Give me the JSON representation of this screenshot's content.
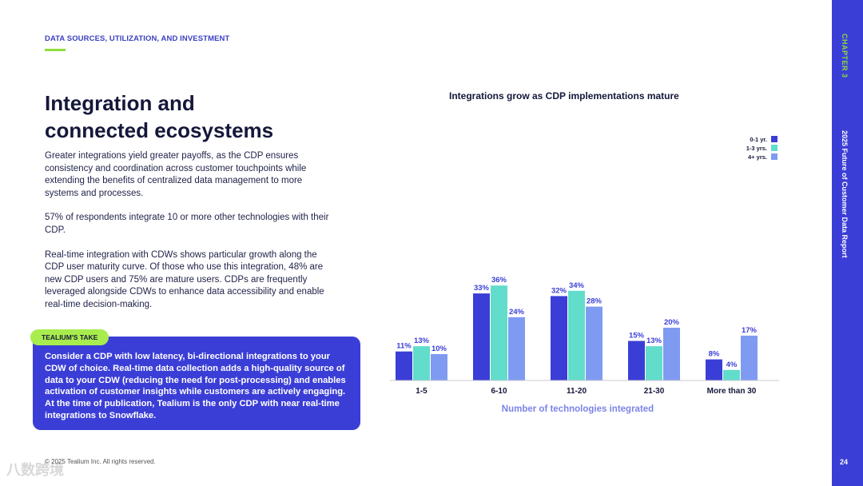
{
  "header": {
    "eyebrow": "DATA SOURCES, UTILIZATION, AND INVESTMENT"
  },
  "title_line1": "Integration and",
  "title_line2": "connected ecosystems",
  "paragraphs": [
    "Greater integrations yield greater payoffs, as the CDP ensures consistency and coordination across customer touchpoints while extending the benefits of centralized data management to more systems and processes.",
    "57% of respondents integrate 10 or more other technologies with their CDP.",
    "Real-time integration with CDWs shows particular growth along the CDP user maturity curve. Of those who use this integration, 48% are new CDP users and 75% are mature users. CDPs are frequently leveraged alongside CDWs to enhance data accessibility and enable real-time decision-making."
  ],
  "take": {
    "badge": "TEALIUM'S TAKE",
    "text": "Consider a CDP with low latency, bi-directional integrations to your CDW of choice. Real-time data collection adds a high-quality source of data to your CDW (reducing the need for post-processing) and enables activation of customer insights while customers are actively engaging. At the time of publication, Tealium is the only CDP with near real-time integrations to Snowflake."
  },
  "footer": {
    "copyright": "© 2025 Tealium Inc. All rights reserved.",
    "page": "24",
    "watermark": "八数跨境"
  },
  "sidebar": {
    "chapter": "CHAPTER 3",
    "report": "2025 Future of Customer Data Report"
  },
  "colors": {
    "series1": "#3b3ed6",
    "series2": "#62dccb",
    "series3": "#7f9bf1",
    "accent_green": "#8fdc3c",
    "xlabel": "#7b83e8"
  },
  "chart_data": {
    "type": "bar",
    "title": "Integrations grow as CDP implementations mature",
    "xlabel": "Number of technologies integrated",
    "ylabel": "",
    "legend_position": "top-right",
    "grid": false,
    "categories": [
      "1-5",
      "6-10",
      "11-20",
      "21-30",
      "More than 30"
    ],
    "series": [
      {
        "name": "0-1 yr.",
        "values": [
          11,
          33,
          32,
          15,
          8
        ]
      },
      {
        "name": "1-3 yrs.",
        "values": [
          13,
          36,
          34,
          13,
          4
        ]
      },
      {
        "name": "4+ yrs.",
        "values": [
          10,
          24,
          28,
          20,
          17
        ]
      }
    ],
    "value_suffix": "%",
    "ylim": [
      0,
      40
    ]
  }
}
